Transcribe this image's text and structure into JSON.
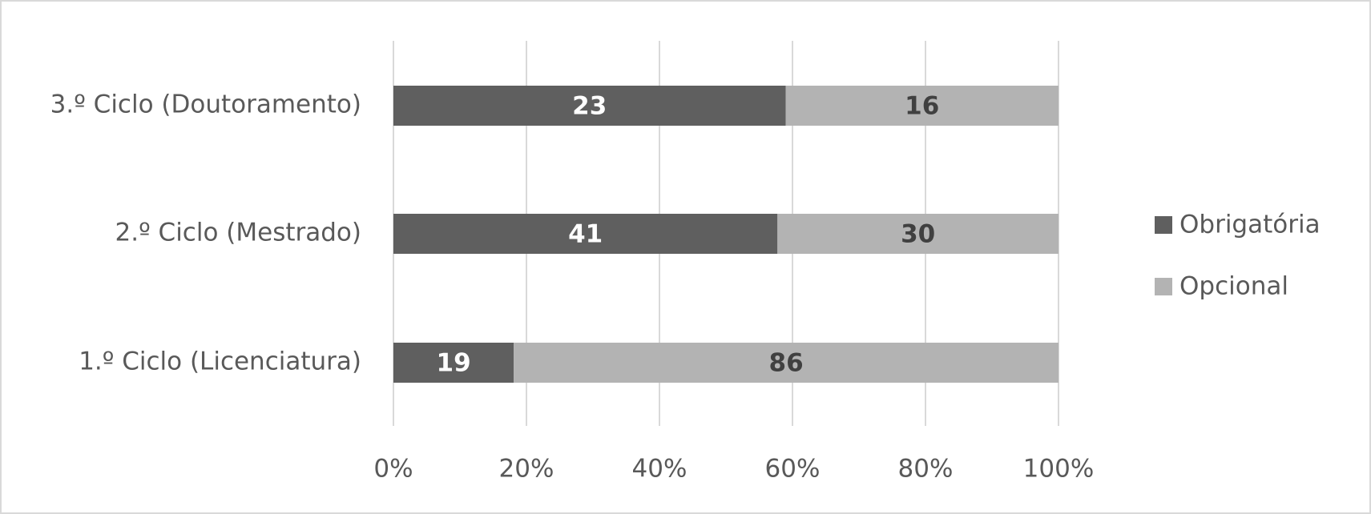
{
  "chart_data": {
    "type": "bar100h",
    "categories": [
      "3.º Ciclo (Doutoramento)",
      "2.º Ciclo (Mestrado)",
      "1.º Ciclo (Licenciatura)"
    ],
    "series": [
      {
        "name": "Obrigatória",
        "color": "#5f5f5f",
        "values": [
          23,
          41,
          19
        ]
      },
      {
        "name": "Opcional",
        "color": "#b3b3b3",
        "values": [
          16,
          30,
          86
        ]
      }
    ],
    "xlim": [
      0,
      100
    ],
    "xticks": [
      {
        "value": 0,
        "label": "0%"
      },
      {
        "value": 20,
        "label": "20%"
      },
      {
        "value": 40,
        "label": "40%"
      },
      {
        "value": 60,
        "label": "60%"
      },
      {
        "value": 80,
        "label": "80%"
      },
      {
        "value": 100,
        "label": "100%"
      }
    ],
    "grid": true,
    "legend": "right"
  }
}
